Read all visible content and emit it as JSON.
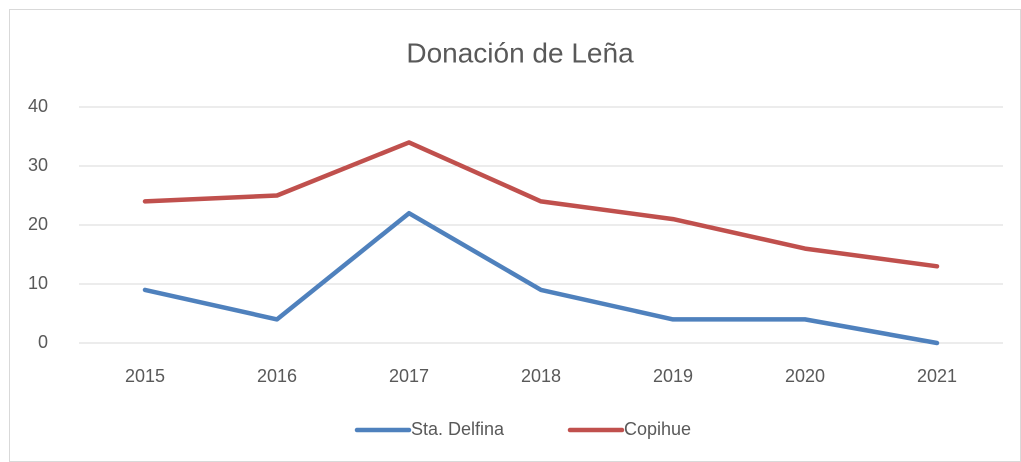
{
  "chart_data": {
    "type": "line",
    "title": "Donación de Leña",
    "categories": [
      "2015",
      "2016",
      "2017",
      "2018",
      "2019",
      "2020",
      "2021"
    ],
    "series": [
      {
        "name": "Sta. Delfina",
        "color": "#4f81bd",
        "values": [
          9,
          4,
          22,
          9,
          4,
          4,
          0
        ]
      },
      {
        "name": "Copihue",
        "color": "#c0504d",
        "values": [
          24,
          25,
          34,
          24,
          21,
          16,
          13
        ]
      }
    ],
    "ylim": [
      0,
      40
    ],
    "yticks": [
      0,
      10,
      20,
      30,
      40
    ],
    "grid": true,
    "legend": "bottom"
  }
}
